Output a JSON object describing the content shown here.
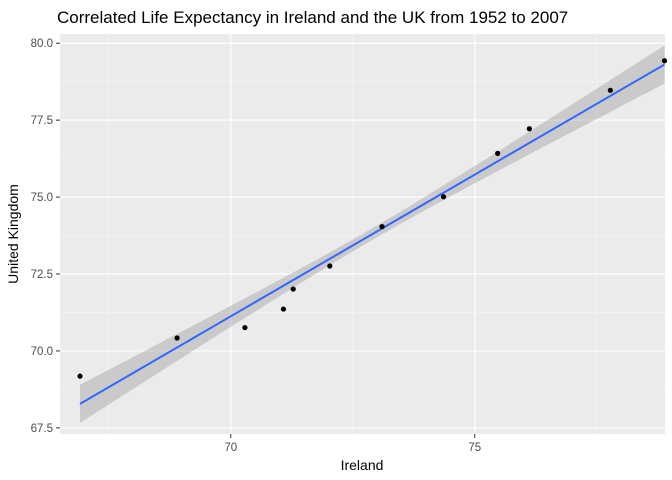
{
  "chart_data": {
    "type": "scatter",
    "title": "Correlated Life Expectancy in Ireland and the UK from 1952 to 2007",
    "xlabel": "Ireland",
    "ylabel": "United Kingdom",
    "xlim": [
      66.5,
      78.9
    ],
    "ylim": [
      67.3,
      80.3
    ],
    "x_ticks": [
      70,
      75
    ],
    "x_tick_labels": [
      "70",
      "75"
    ],
    "x_minor_ticks": [
      67.5,
      72.5,
      77.5
    ],
    "y_ticks": [
      67.5,
      70.0,
      72.5,
      75.0,
      77.5,
      80.0
    ],
    "y_tick_labels": [
      "67.5",
      "70.0",
      "72.5",
      "75.0",
      "77.5",
      "80.0"
    ],
    "y_minor_ticks": [
      68.75,
      71.25,
      73.75,
      76.25,
      78.75
    ],
    "grid": true,
    "points": [
      {
        "x": 66.91,
        "y": 69.18
      },
      {
        "x": 68.9,
        "y": 70.42
      },
      {
        "x": 70.29,
        "y": 70.76
      },
      {
        "x": 71.08,
        "y": 71.36
      },
      {
        "x": 71.28,
        "y": 72.01
      },
      {
        "x": 72.03,
        "y": 72.76
      },
      {
        "x": 73.1,
        "y": 74.04
      },
      {
        "x": 74.36,
        "y": 75.01
      },
      {
        "x": 75.47,
        "y": 76.42
      },
      {
        "x": 76.12,
        "y": 77.22
      },
      {
        "x": 77.78,
        "y": 78.47
      },
      {
        "x": 78.89,
        "y": 79.43
      }
    ],
    "trend": {
      "method": "linear",
      "x": [
        66.91,
        78.89
      ],
      "y": [
        68.28,
        79.31
      ],
      "ci_half_width": [
        0.62,
        0.19,
        0.62
      ],
      "ci_x": [
        66.91,
        72.9,
        78.89
      ],
      "line_color": "#3366ff",
      "band_color": "#999999"
    },
    "colors": {
      "panel": "#ebebeb",
      "grid_major": "#ffffff",
      "point": "#000000"
    }
  }
}
